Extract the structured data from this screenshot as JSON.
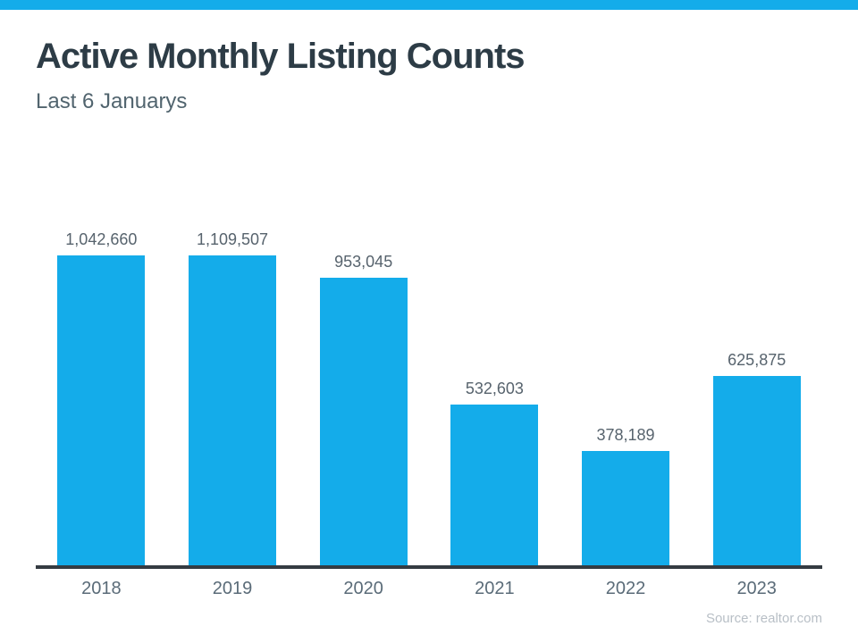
{
  "accent_color": "#14aceA",
  "header": {
    "title": "Active Monthly Listing Counts",
    "subtitle": "Last 6 Januarys"
  },
  "source": "Source: realtor.com",
  "chart_data": {
    "type": "bar",
    "categories": [
      "2018",
      "2019",
      "2020",
      "2021",
      "2022",
      "2023"
    ],
    "values": [
      1042660,
      1109507,
      953045,
      532603,
      378189,
      625875
    ],
    "value_labels": [
      "1,042,660",
      "1,109,507",
      "953,045",
      "532,603",
      "378,189",
      "625,875"
    ],
    "title": "Active Monthly Listing Counts",
    "subtitle": "Last 6 Januarys",
    "xlabel": "",
    "ylabel": "",
    "ylim": [
      0,
      1109507
    ],
    "grid": false,
    "legend": false,
    "bar_color": "#14aceA",
    "annotation": "Source: realtor.com"
  }
}
